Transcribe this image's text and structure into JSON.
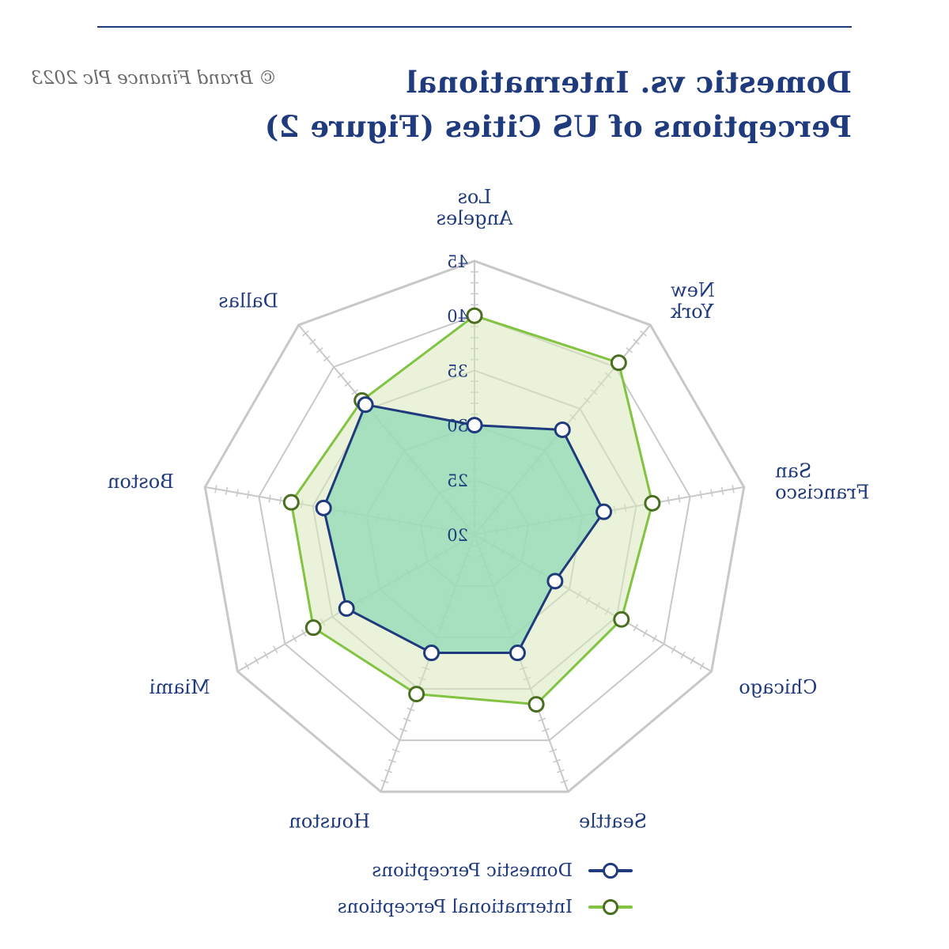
{
  "header": {
    "title": "Domestic vs. International Perceptions of US Cities (Figure 2)",
    "copyright": "© Brand Finance Plc 2023"
  },
  "chart_data": {
    "type": "radar",
    "title": "Domestic vs. International Perceptions of US Cities (Figure 2)",
    "categories": [
      "Los Angeles",
      "Dallas",
      "Boston",
      "Miami",
      "Houston",
      "Seattle",
      "Chicago",
      "San Francisco",
      "New York"
    ],
    "series": [
      {
        "name": "Domestic Perceptions",
        "values": [
          30,
          35.5,
          34,
          33.5,
          31.5,
          31.5,
          28.5,
          32,
          32.5
        ]
      },
      {
        "name": "International Perceptions",
        "values": [
          40,
          36,
          37,
          37,
          35.5,
          36.5,
          35.5,
          36.5,
          40.5
        ]
      }
    ],
    "radial_ticks": [
      20,
      25,
      30,
      35,
      40,
      45
    ],
    "rmin": 20,
    "rmax": 45,
    "gridlines": true,
    "legend_position": "bottom",
    "colors": {
      "domestic_line": "#1f3a7d",
      "domestic_fill": "#8fd9b6",
      "international_line": "#82c341",
      "international_fill": "#d8e9bb",
      "international_marker_edge": "#4a6e1f",
      "grid": "#c8c8c8",
      "text": "#1f3a7d"
    }
  }
}
